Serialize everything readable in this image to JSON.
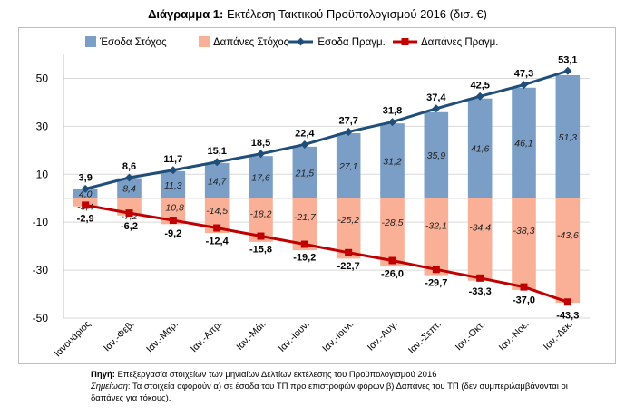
{
  "title_bold": "Διάγραμμα 1:",
  "title_rest": " Εκτέλεση Τακτικού Προϋπολογισμού 2016 (δισ. €)",
  "notes": {
    "source_label": "Πηγή:",
    "source_text": " Επεξεργασία στοιχείων των μηνιαίων Δελτίων εκτέλεσης του Προϋπολογισμού 2016",
    "note_label": "Σημείωση",
    "note_text": ": Τα στοιχεία αφορούν α) σε έσοδα του ΤΠ προ επιστροφών φόρων β)  Δαπάνες του ΤΠ (δεν συμπεριλαμβάνονται οι δαπάνες για τόκους)."
  },
  "colors": {
    "rev_target": "#7b9ec7",
    "exp_target": "#f9b097",
    "rev_actual": "#1f4e79",
    "exp_actual": "#c00000",
    "grid": "#d9d9d9"
  },
  "chart_data": {
    "type": "bar",
    "title": "Εκτέλεση Τακτικού Προϋπολογισμού 2016 (δισ. €)",
    "categories": [
      "Ιανουάριος",
      "Ιαν.-Φεβ.",
      "Ιαν.-Μαρ.",
      "Ιαν.-Απρ.",
      "Ιαν.-Μάι.",
      "Ιαν.-Ιουν.",
      "Ιαν.-Ιουλ.",
      "Ιαν.-Αυγ.",
      "Ιαν.-Σεπτ.",
      "Ιαν.-Οκτ.",
      "Ιαν.-Νοε.",
      "Ιαν.-Δεκ."
    ],
    "ylim": [
      -50,
      60
    ],
    "yticks": [
      50,
      30,
      10,
      -10,
      -30,
      -50
    ],
    "grid": true,
    "legend_position": "top",
    "series": [
      {
        "name": "Έσοδα Στόχος",
        "kind": "bar",
        "values": [
          4.0,
          8.4,
          11.3,
          14.7,
          17.6,
          21.5,
          27.1,
          31.2,
          35.9,
          41.6,
          46.1,
          51.3
        ]
      },
      {
        "name": "Δαπάνες Στόχος",
        "kind": "bar",
        "values": [
          -3.4,
          -7.2,
          -10.8,
          -14.5,
          -18.2,
          -21.7,
          -25.2,
          -28.5,
          -32.1,
          -34.4,
          -38.3,
          -43.6
        ]
      },
      {
        "name": "Έσοδα Πραγμ.",
        "kind": "line",
        "values": [
          3.9,
          8.6,
          11.7,
          15.1,
          18.5,
          22.4,
          27.7,
          31.8,
          37.4,
          42.5,
          47.3,
          53.1
        ]
      },
      {
        "name": "Δαπάνες Πραγμ.",
        "kind": "line",
        "values": [
          -2.9,
          -6.2,
          -9.2,
          -12.4,
          -15.8,
          -19.2,
          -22.7,
          -26.0,
          -29.7,
          -33.3,
          -37.0,
          -43.3
        ]
      }
    ],
    "bar_labels_rev": [
      "4,0",
      "8,4",
      "11,3",
      "14,7",
      "17,6",
      "21,5",
      "27,1",
      "31,2",
      "35,9",
      "41,6",
      "46,1",
      "51,3"
    ],
    "bar_labels_exp": [
      "-3,4",
      "-7,2",
      "-10,8",
      "-14,5",
      "-18,2",
      "-21,7",
      "-25,2",
      "-28,5",
      "-32,1",
      "-34,4",
      "-38,3",
      "-43,6"
    ],
    "line_labels_rev": [
      "3,9",
      "8,6",
      "11,7",
      "15,1",
      "18,5",
      "22,4",
      "27,7",
      "31,8",
      "37,4",
      "42,5",
      "47,3",
      "53,1"
    ],
    "line_labels_exp": [
      "-2,9",
      "-6,2",
      "-9,2",
      "-12,4",
      "-15,8",
      "-19,2",
      "-22,7",
      "-26,0",
      "-29,7",
      "-33,3",
      "-37,0",
      "-43,3"
    ]
  }
}
